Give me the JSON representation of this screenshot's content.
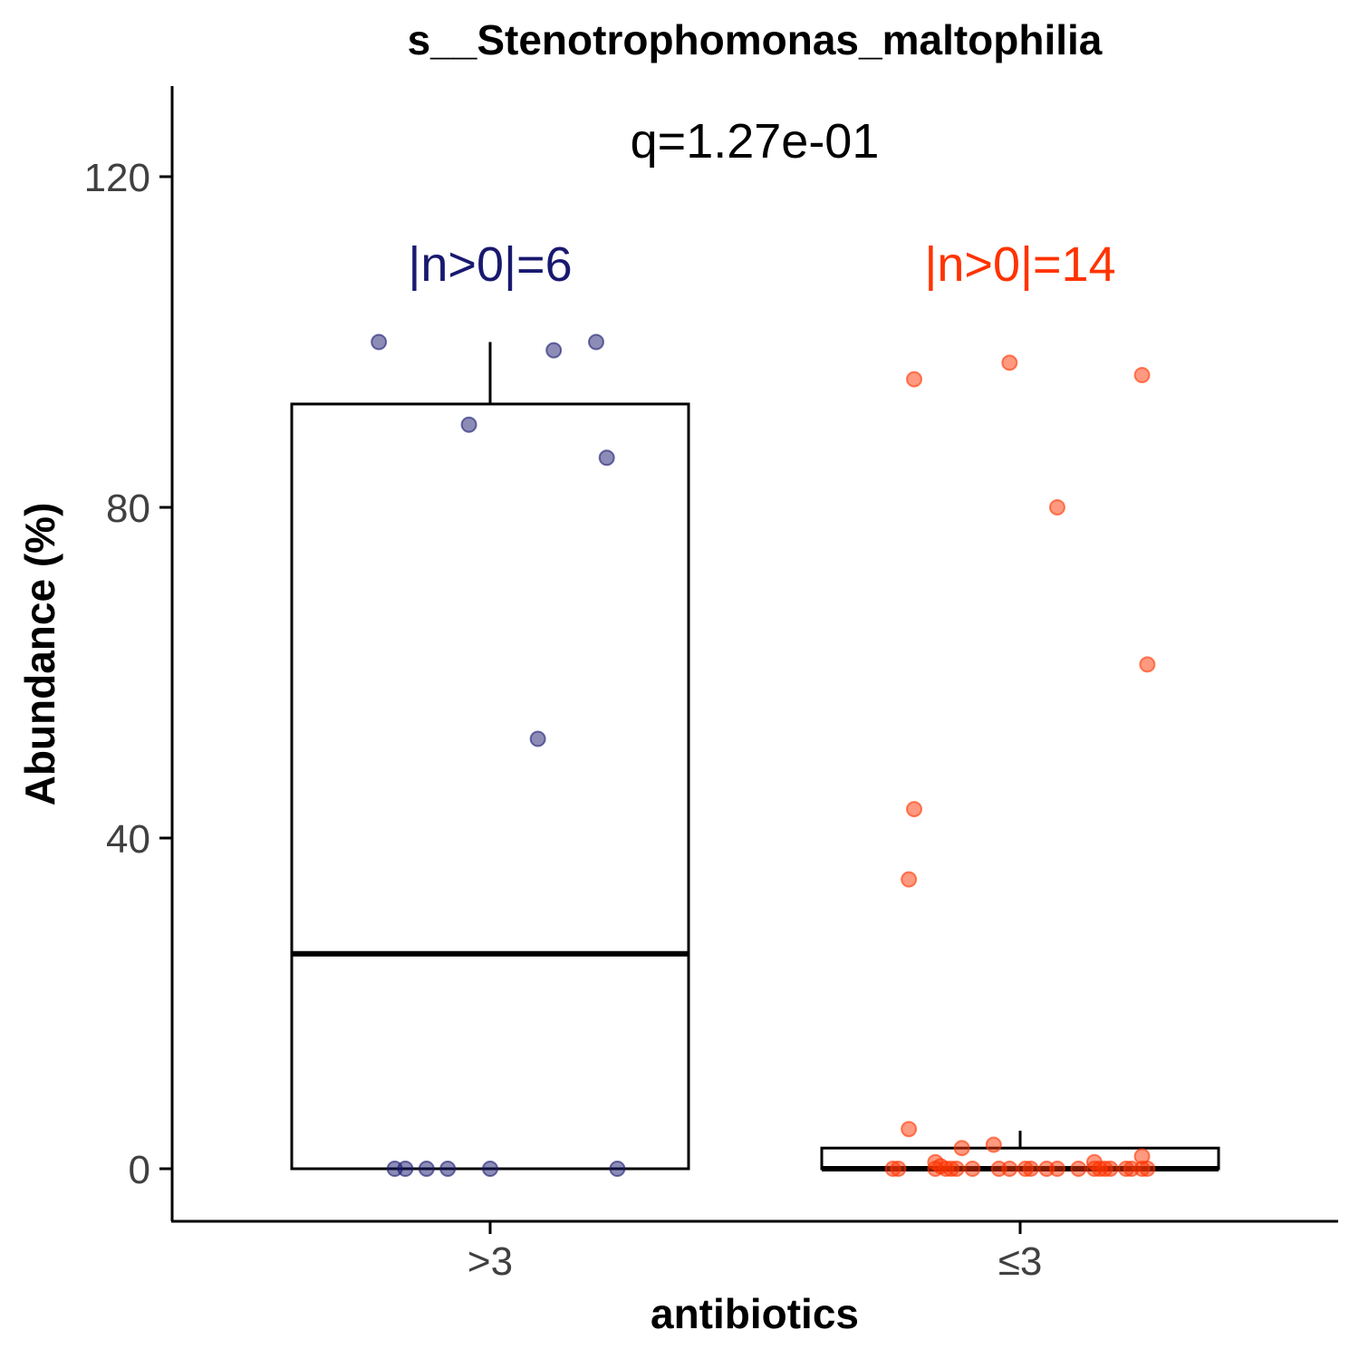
{
  "chart_data": {
    "type": "box",
    "title": "s__Stenotrophomonas_maltophilia",
    "xlabel": "antibiotics",
    "ylabel": "Abundance (%)",
    "ylim": [
      -6,
      131
    ],
    "yticks": [
      0,
      40,
      80,
      120
    ],
    "grid": false,
    "legend": "none",
    "annotation": "q=1.27e-01",
    "categories": [
      ">3",
      "≤3"
    ],
    "groups": [
      {
        "name": ">3",
        "count_label": "|n>0|=6",
        "color": "#191970",
        "box": {
          "q1": 0,
          "median": 26,
          "q3": 92.5,
          "whisker_low": 0,
          "whisker_high": 100
        },
        "points": [
          {
            "x": -0.21,
            "y": 100
          },
          {
            "x": 0.12,
            "y": 99
          },
          {
            "x": 0.2,
            "y": 100
          },
          {
            "x": -0.04,
            "y": 90
          },
          {
            "x": 0.22,
            "y": 86
          },
          {
            "x": 0.09,
            "y": 52
          },
          {
            "x": -0.18,
            "y": 0
          },
          {
            "x": -0.16,
            "y": 0
          },
          {
            "x": -0.12,
            "y": 0
          },
          {
            "x": -0.08,
            "y": 0
          },
          {
            "x": 0.0,
            "y": 0
          },
          {
            "x": 0.24,
            "y": 0
          }
        ]
      },
      {
        "name": "≤3",
        "count_label": "|n>0|=14",
        "color": "#FF3300",
        "box": {
          "q1": 0,
          "median": 0,
          "q3": 2.5,
          "whisker_low": 0,
          "whisker_high": 4.6
        },
        "points": [
          {
            "x": -0.2,
            "y": 95.5
          },
          {
            "x": -0.02,
            "y": 97.5
          },
          {
            "x": 0.23,
            "y": 96
          },
          {
            "x": 0.07,
            "y": 80
          },
          {
            "x": 0.24,
            "y": 61
          },
          {
            "x": -0.2,
            "y": 43.5
          },
          {
            "x": -0.21,
            "y": 35
          },
          {
            "x": -0.21,
            "y": 4.8
          },
          {
            "x": -0.11,
            "y": 2.5
          },
          {
            "x": -0.05,
            "y": 2.9
          },
          {
            "x": 0.23,
            "y": 1.5
          },
          {
            "x": 0.14,
            "y": 0.8
          },
          {
            "x": -0.16,
            "y": 0.8
          },
          {
            "x": -0.15,
            "y": 0.3
          },
          {
            "x": -0.24,
            "y": 0
          },
          {
            "x": -0.23,
            "y": 0
          },
          {
            "x": -0.16,
            "y": 0
          },
          {
            "x": -0.14,
            "y": 0
          },
          {
            "x": -0.13,
            "y": 0
          },
          {
            "x": -0.12,
            "y": 0
          },
          {
            "x": -0.09,
            "y": 0
          },
          {
            "x": -0.04,
            "y": 0
          },
          {
            "x": -0.02,
            "y": 0
          },
          {
            "x": 0.01,
            "y": 0
          },
          {
            "x": 0.02,
            "y": 0
          },
          {
            "x": 0.05,
            "y": 0
          },
          {
            "x": 0.07,
            "y": 0
          },
          {
            "x": 0.11,
            "y": 0
          },
          {
            "x": 0.14,
            "y": 0
          },
          {
            "x": 0.15,
            "y": 0
          },
          {
            "x": 0.16,
            "y": 0
          },
          {
            "x": 0.17,
            "y": 0
          },
          {
            "x": 0.2,
            "y": 0
          },
          {
            "x": 0.21,
            "y": 0
          },
          {
            "x": 0.23,
            "y": 0
          },
          {
            "x": 0.24,
            "y": 0
          }
        ]
      }
    ]
  }
}
